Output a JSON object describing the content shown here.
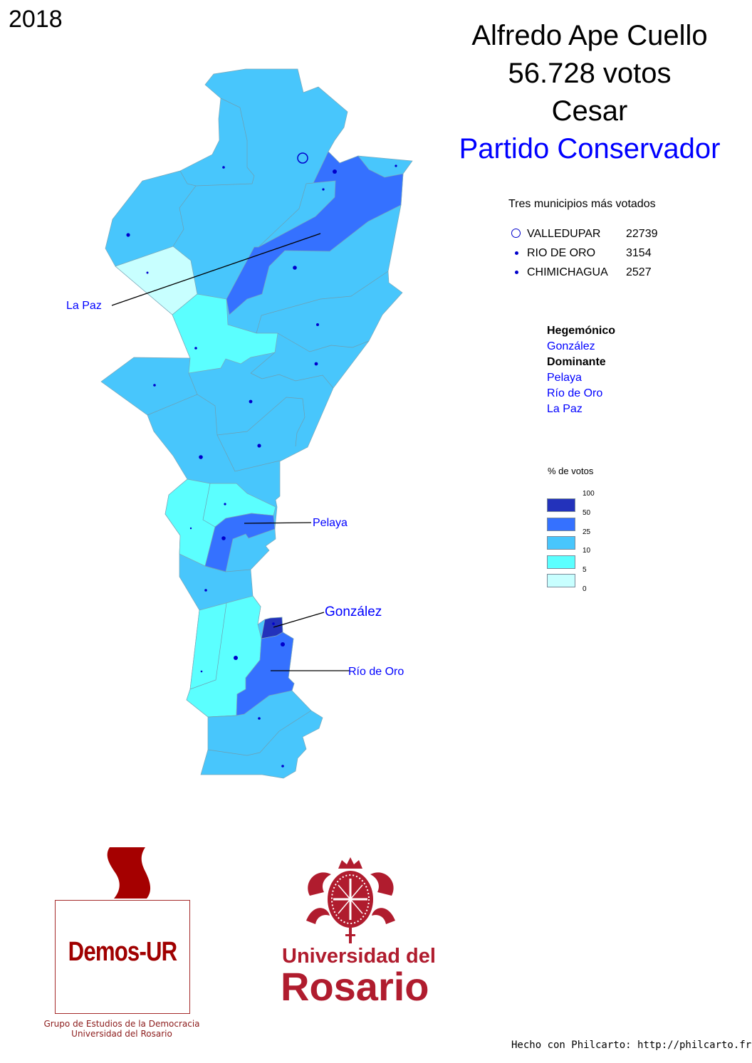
{
  "year": "2018",
  "header": {
    "candidate": "Alfredo Ape Cuello",
    "votes": "56.728 votos",
    "department": "Cesar",
    "party": "Partido Conservador"
  },
  "top_municipalities": {
    "title": "Tres municipios más votados",
    "rows": [
      {
        "name": "VALLEDUPAR",
        "value": "22739",
        "marker": "circle"
      },
      {
        "name": "RIO DE ORO",
        "value": "3154",
        "marker": "dot"
      },
      {
        "name": "CHIMICHAGUA",
        "value": "2527",
        "marker": "dot"
      }
    ]
  },
  "categories": {
    "hegemonic_label": "Hegemónico",
    "hegemonic": [
      "González"
    ],
    "dominant_label": "Dominante",
    "dominant": [
      "Pelaya",
      "Río de Oro",
      "La Paz"
    ]
  },
  "legend": {
    "title": "% de votos",
    "breaks": [
      "100",
      "50",
      "25",
      "10",
      "5",
      "0"
    ],
    "colors": [
      "#2332BB",
      "#3571FF",
      "#48C6FC",
      "#5BFFFF",
      "#C8FFFF"
    ]
  },
  "map_labels": {
    "la_paz": "La Paz",
    "pelaya": "Pelaya",
    "gonzalez": "González",
    "rio_de_oro": "Río de Oro"
  },
  "logos": {
    "demos": "Demos-UR",
    "demos_caption_1": "Grupo de Estudios de la Democracia",
    "demos_caption_2": "Universidad del Rosario",
    "rosario_1": "Universidad del",
    "rosario_2": "Rosario"
  },
  "footer": "Hecho con Philcarto: http://philcarto.free.fr/"
}
